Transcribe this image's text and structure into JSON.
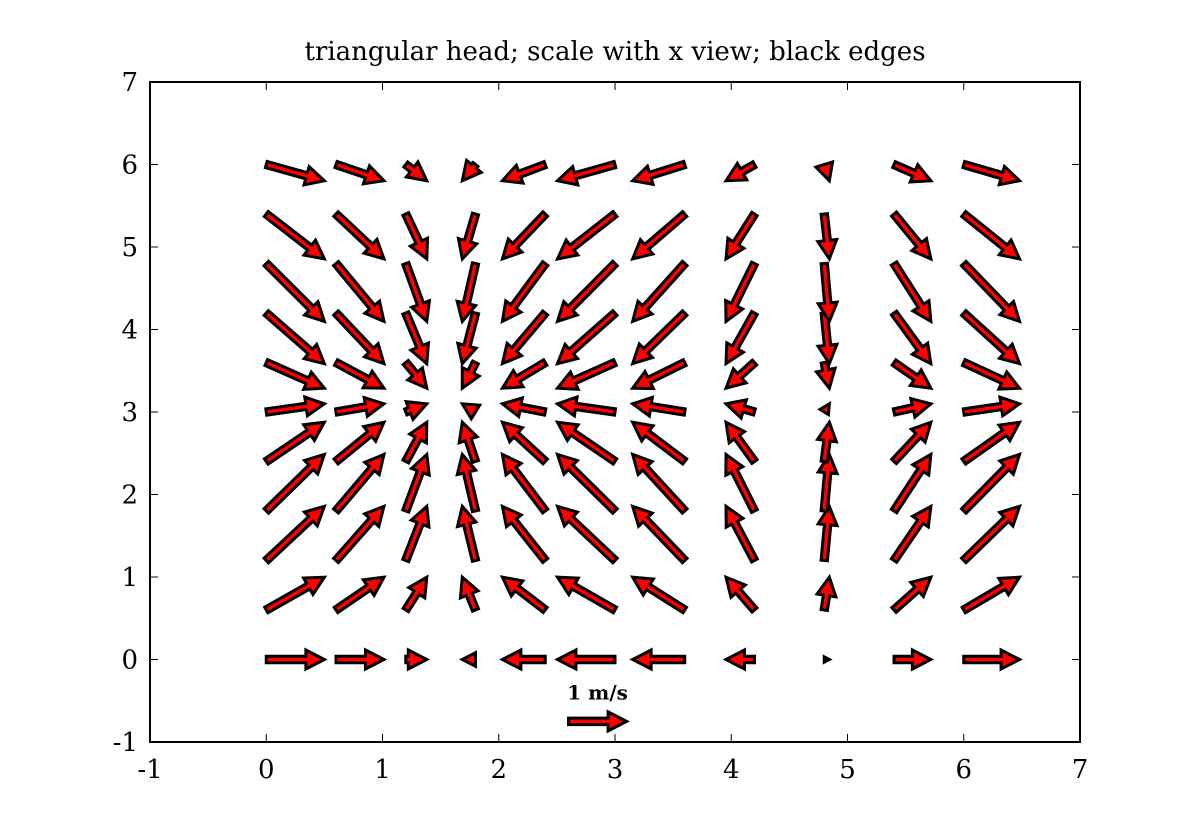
{
  "chart_data": {
    "type": "quiver",
    "title": "triangular head; scale with x view; black edges",
    "xlabel": "",
    "ylabel": "",
    "xlim": [
      -1,
      7
    ],
    "ylim": [
      -1,
      7
    ],
    "x_ticks": [
      "-1",
      "0",
      "1",
      "2",
      "3",
      "4",
      "5",
      "6",
      "7"
    ],
    "y_ticks": [
      "-1",
      "0",
      "1",
      "2",
      "3",
      "4",
      "5",
      "6",
      "7"
    ],
    "grid": false,
    "arrow_face_color": "#ff0000",
    "arrow_edge_color": "#000000",
    "arrow_style": "triangular head",
    "x": [
      0,
      0.6,
      1.2,
      1.8,
      2.4,
      3.0,
      3.6,
      4.2,
      4.8,
      5.4,
      6.0
    ],
    "y": [
      0,
      0.6,
      1.2,
      1.8,
      2.4,
      3.0,
      3.6,
      4.2,
      4.8,
      5.4,
      6.0
    ],
    "vector_field": {
      "u": "cos(x)",
      "v": "sin(y)",
      "units_per_m_s": 0.5
    },
    "key": {
      "label": "1 m/s",
      "value": 1,
      "x": 2.6,
      "y": -0.75
    }
  }
}
